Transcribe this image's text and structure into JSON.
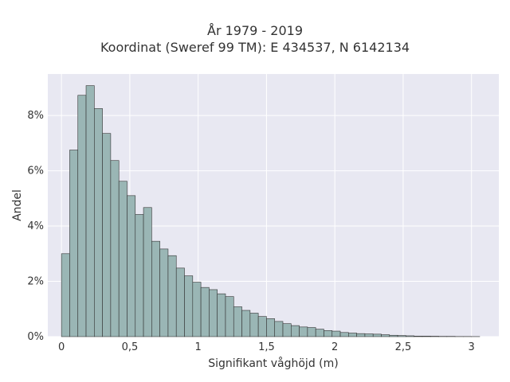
{
  "chart_data": {
    "type": "histogram",
    "title_line1": "År 1979 - 2019",
    "title_line2": "Koordinat (Sweref 99 TM): E 434537, N 6142134",
    "xlabel": "Signifikant våghöjd (m)",
    "ylabel": "Andel",
    "x_ticks": [
      {
        "value": 0,
        "label": "0"
      },
      {
        "value": 0.5,
        "label": "0,5"
      },
      {
        "value": 1,
        "label": "1"
      },
      {
        "value": 1.5,
        "label": "1,5"
      },
      {
        "value": 2,
        "label": "2"
      },
      {
        "value": 2.5,
        "label": "2,5"
      },
      {
        "value": 3,
        "label": "3"
      }
    ],
    "y_ticks": [
      {
        "value": 0,
        "label": "0%"
      },
      {
        "value": 2,
        "label": "2%"
      },
      {
        "value": 4,
        "label": "4%"
      },
      {
        "value": 6,
        "label": "6%"
      },
      {
        "value": 8,
        "label": "8%"
      }
    ],
    "xlim": [
      -0.1,
      3.2
    ],
    "ylim": [
      0,
      9.5
    ],
    "grid": true,
    "bin_width": 0.06,
    "bin_start": 0.0,
    "values_percent": [
      3.0,
      6.75,
      8.73,
      9.08,
      8.25,
      7.35,
      6.37,
      5.62,
      5.1,
      4.42,
      4.67,
      3.45,
      3.17,
      2.93,
      2.48,
      2.2,
      1.97,
      1.78,
      1.7,
      1.55,
      1.45,
      1.08,
      0.95,
      0.85,
      0.73,
      0.65,
      0.55,
      0.47,
      0.4,
      0.35,
      0.33,
      0.27,
      0.22,
      0.2,
      0.15,
      0.13,
      0.11,
      0.1,
      0.09,
      0.07,
      0.05,
      0.04,
      0.03,
      0.02,
      0.02,
      0.015,
      0.01,
      0.01,
      0.005,
      0.005,
      0.003
    ],
    "colors": {
      "bar_fill": "#9ab6b5",
      "bar_stroke": "#333333",
      "plot_bg": "#e8e8f2",
      "grid": "#ffffff"
    }
  }
}
